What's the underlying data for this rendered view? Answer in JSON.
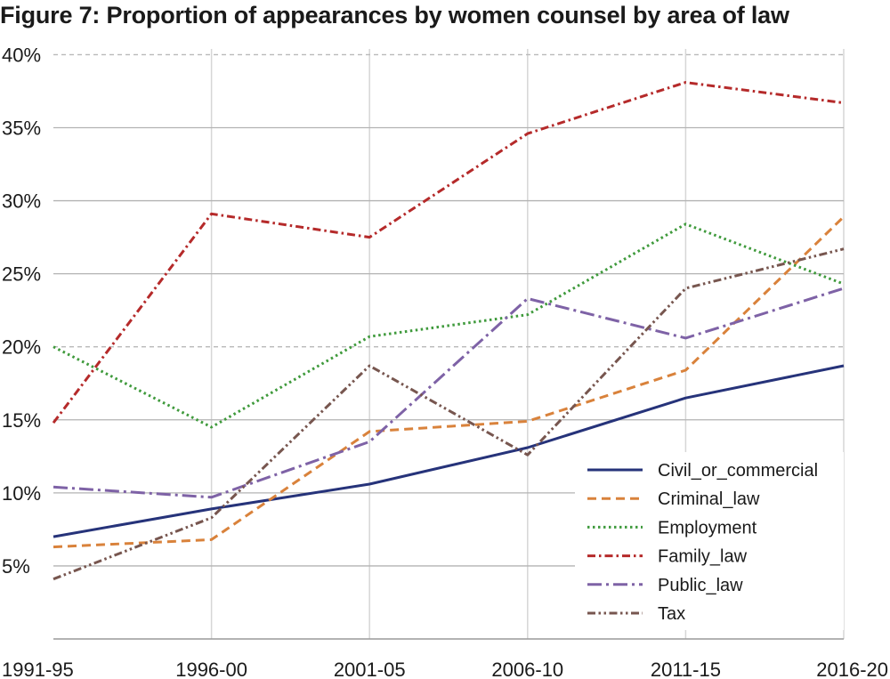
{
  "chart_data": {
    "type": "line",
    "title": "Figure 7: Proportion of appearances by women counsel by area of law",
    "xlabel": "",
    "ylabel": "",
    "categories": [
      "1991-95",
      "1996-00",
      "2001-05",
      "2006-10",
      "2011-15",
      "2016-20"
    ],
    "y_ticks": [
      {
        "value": 5,
        "label": "5%"
      },
      {
        "value": 10,
        "label": "10%"
      },
      {
        "value": 15,
        "label": "15%"
      },
      {
        "value": 20,
        "label": "20%"
      },
      {
        "value": 25,
        "label": "25%"
      },
      {
        "value": 30,
        "label": "30%"
      },
      {
        "value": 35,
        "label": "35%"
      },
      {
        "value": 40,
        "label": "40%"
      }
    ],
    "ylim": [
      0,
      41
    ],
    "grid": true,
    "legend_position": "bottom-right",
    "series": [
      {
        "name": "Civil_or_commercial",
        "color": "#26337a",
        "style": "solid",
        "values": [
          7.0,
          8.9,
          10.6,
          13.1,
          16.5,
          18.7
        ]
      },
      {
        "name": "Criminal_law",
        "color": "#d9823b",
        "style": "dashed",
        "values": [
          6.3,
          6.8,
          14.2,
          14.9,
          18.4,
          28.9
        ]
      },
      {
        "name": "Employment",
        "color": "#3f9a3c",
        "style": "dotted",
        "values": [
          20.0,
          14.5,
          20.7,
          22.2,
          28.4,
          24.3
        ]
      },
      {
        "name": "Family_law",
        "color": "#b52a2a",
        "style": "dashdot",
        "values": [
          14.8,
          29.1,
          27.5,
          34.6,
          38.1,
          36.7
        ]
      },
      {
        "name": "Public_law",
        "color": "#7e62a6",
        "style": "longdashdot",
        "values": [
          10.4,
          9.7,
          13.5,
          23.3,
          20.6,
          24.0
        ]
      },
      {
        "name": "Tax",
        "color": "#77564f",
        "style": "dashdotdot",
        "values": [
          4.1,
          8.3,
          18.7,
          12.6,
          24.0,
          26.7
        ]
      }
    ]
  }
}
